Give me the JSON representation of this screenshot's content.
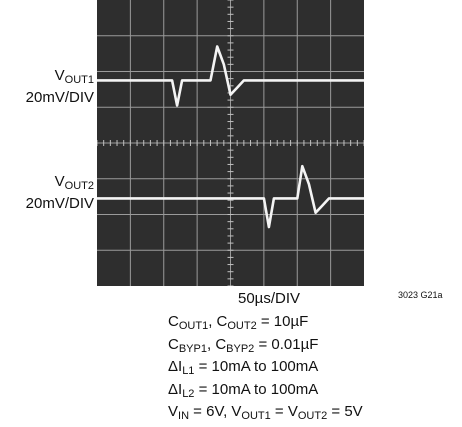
{
  "labels": {
    "vout1": {
      "prefix": "V",
      "sub": "OUT1",
      "scale": "20mV/DIV"
    },
    "vout2": {
      "prefix": "V",
      "sub": "OUT2",
      "scale": "20mV/DIV"
    }
  },
  "chart_data": {
    "type": "line",
    "title": "",
    "xlabel": "50µs/DIV",
    "ylabel": "",
    "figure_code": "3023 G21a",
    "grid": true,
    "grid_divisions": {
      "x": 8,
      "y": 8
    },
    "series": [
      {
        "name": "VOUT1",
        "x_div": [
          0,
          2.1,
          2.25,
          2.4,
          2.55,
          2.7,
          2.85,
          3.0,
          3.4,
          3.6,
          3.8,
          4.0,
          4.2,
          4.4,
          4.6,
          4.8,
          5.0,
          8.0
        ],
        "y_div": [
          5.75,
          5.75,
          5.75,
          5.05,
          5.75,
          5.75,
          5.75,
          5.75,
          5.75,
          6.7,
          6.2,
          5.35,
          5.55,
          5.75,
          5.75,
          5.75,
          5.75,
          5.75
        ]
      },
      {
        "name": "VOUT2",
        "x_div": [
          0,
          4.9,
          5.0,
          5.15,
          5.3,
          5.45,
          5.6,
          5.75,
          6.0,
          6.15,
          6.35,
          6.55,
          6.75,
          6.95,
          7.15,
          7.35,
          8.0
        ],
        "y_div": [
          2.45,
          2.45,
          2.45,
          1.65,
          2.45,
          2.45,
          2.45,
          2.45,
          2.45,
          3.35,
          2.85,
          2.05,
          2.25,
          2.45,
          2.45,
          2.45,
          2.45
        ]
      }
    ]
  },
  "conditions": [
    [
      {
        "t": "C"
      },
      {
        "s": "OUT1"
      },
      {
        "t": ", C"
      },
      {
        "s": "OUT2"
      },
      {
        "t": " = 10µF"
      }
    ],
    [
      {
        "t": "C"
      },
      {
        "s": "BYP1"
      },
      {
        "t": ", C"
      },
      {
        "s": "BYP2"
      },
      {
        "t": " = 0.01µF"
      }
    ],
    [
      {
        "t": "ΔI"
      },
      {
        "s": "L1"
      },
      {
        "t": " = 10mA to 100mA"
      }
    ],
    [
      {
        "t": "ΔI"
      },
      {
        "s": "L2"
      },
      {
        "t": " = 10mA to 100mA"
      }
    ],
    [
      {
        "t": "V"
      },
      {
        "s": "IN"
      },
      {
        "t": " = 6V, V"
      },
      {
        "s": "OUT1"
      },
      {
        "t": " = V"
      },
      {
        "s": "OUT2"
      },
      {
        "t": " = 5V"
      }
    ]
  ]
}
